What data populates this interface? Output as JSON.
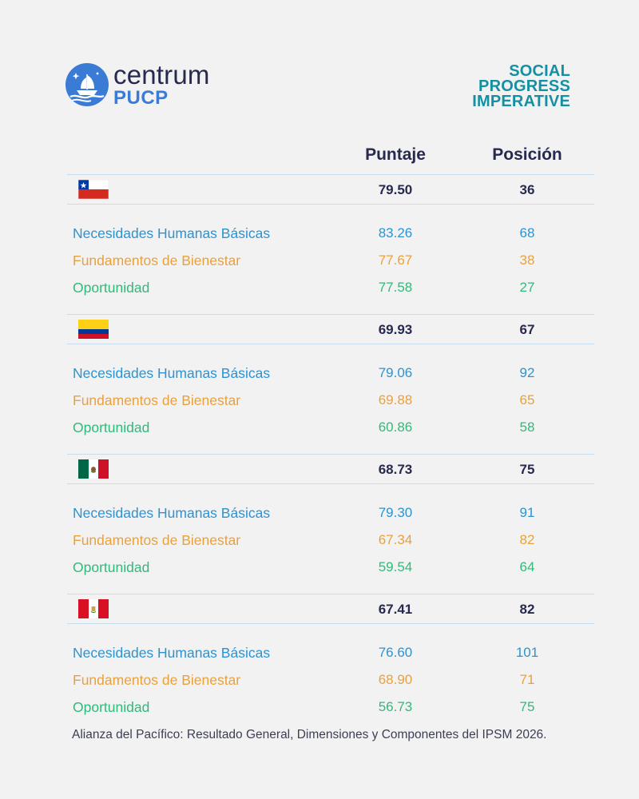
{
  "header": {
    "brand_word": "centrum",
    "brand_sub": "PUCP",
    "partner_lines": [
      "SOCIAL",
      "PROGRESS",
      "IMPERATIVE"
    ]
  },
  "columns": {
    "score": "Puntaje",
    "rank": "Posición"
  },
  "countries": [
    {
      "flag": "chile-flag",
      "score": "79.50",
      "rank": "36",
      "dimensions": [
        {
          "label": "Necesidades Humanas Básicas",
          "score": "83.26",
          "rank": "68"
        },
        {
          "label": "Fundamentos de Bienestar",
          "score": "77.67",
          "rank": "38"
        },
        {
          "label": "Oportunidad",
          "score": "77.58",
          "rank": "27"
        }
      ]
    },
    {
      "flag": "colombia-flag",
      "score": "69.93",
      "rank": "67",
      "dimensions": [
        {
          "label": "Necesidades Humanas Básicas",
          "score": "79.06",
          "rank": "92"
        },
        {
          "label": "Fundamentos de Bienestar",
          "score": "69.88",
          "rank": "65"
        },
        {
          "label": "Oportunidad",
          "score": "60.86",
          "rank": "58"
        }
      ]
    },
    {
      "flag": "mexico-flag",
      "score": "68.73",
      "rank": "75",
      "dimensions": [
        {
          "label": "Necesidades Humanas Básicas",
          "score": "79.30",
          "rank": "91"
        },
        {
          "label": "Fundamentos de Bienestar",
          "score": "67.34",
          "rank": "82"
        },
        {
          "label": "Oportunidad",
          "score": "59.54",
          "rank": "64"
        }
      ]
    },
    {
      "flag": "peru-flag",
      "score": "67.41",
      "rank": "82",
      "dimensions": [
        {
          "label": "Necesidades Humanas Básicas",
          "score": "76.60",
          "rank": "101"
        },
        {
          "label": "Fundamentos de Bienestar",
          "score": "68.90",
          "rank": "71"
        },
        {
          "label": "Oportunidad",
          "score": "56.73",
          "rank": "75"
        }
      ]
    }
  ],
  "colors": {
    "basic_needs": "#2b93d1",
    "wellbeing": "#e9a13b",
    "opportunity": "#33b979",
    "brand_blue": "#3a7bd5",
    "spi_teal": "#1590a3",
    "rule": "#c7dcef"
  },
  "caption": "Alianza del Pacífico: Resultado General, Dimensiones y Componentes del IPSM 2026."
}
